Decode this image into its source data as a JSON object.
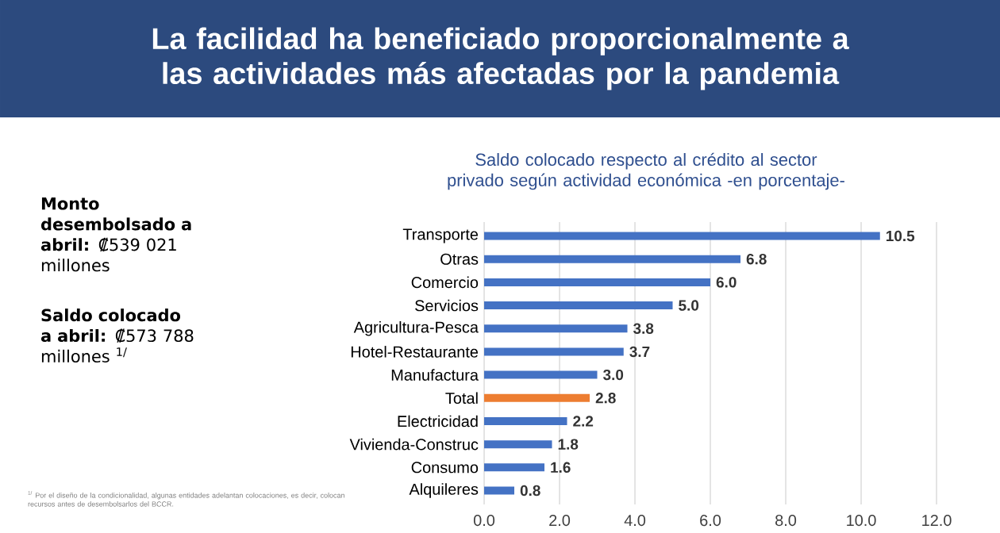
{
  "chart_data": {
    "type": "bar",
    "orientation": "horizontal",
    "title": "Saldo colocado respecto al crédito al sector privado según actividad económica -en porcentaje-",
    "subtitle": "La facilidad ha beneficiado proporcionalmente a las actividades más afectadas por la pandemia",
    "categories": [
      "Transporte",
      "Otras",
      "Comercio",
      "Servicios",
      "Agricultura-Pesca",
      "Hotel-Restaurante",
      "Manufactura",
      "Total",
      "Electricidad",
      "Vivienda-Construc",
      "Consumo",
      "Alquileres"
    ],
    "values": [
      10.5,
      6.8,
      6.0,
      5.0,
      3.8,
      3.7,
      3.0,
      2.8,
      2.2,
      1.8,
      1.6,
      0.8
    ],
    "value_labels": [
      "10.5",
      "6.8",
      "6.0",
      "5.0",
      "3.8",
      "3.7",
      "3.0",
      "2.8",
      "2.2",
      "1.8",
      "1.6",
      "0.8"
    ],
    "colors": [
      "#4472c4",
      "#4472c4",
      "#4472c4",
      "#4472c4",
      "#4472c4",
      "#4472c4",
      "#4472c4",
      "#ed7d31",
      "#4472c4",
      "#4472c4",
      "#4472c4",
      "#4472c4"
    ],
    "xlim": [
      0,
      12
    ],
    "xticks": [
      {
        "value": 0,
        "label": "0.0"
      },
      {
        "value": 2,
        "label": "2.0"
      },
      {
        "value": 4,
        "label": "4.0"
      },
      {
        "value": 6,
        "label": "6.0"
      },
      {
        "value": 8,
        "label": "8.0"
      },
      {
        "value": 10,
        "label": "10.0"
      },
      {
        "value": 12,
        "label": "12.0"
      }
    ],
    "grid": "x",
    "annotations": [
      "**Monto desembolsado a abril:** ₡539 021 millones",
      "**Saldo colocado a abril:** ₡573 788 millones $^{1/}$",
      "$^{1/}$ Por el diseño de la condicionalidad, algunas entidades adelantan colocaciones, es decir, colocan recursos antes de desembolsarlos del BCCR."
    ]
  }
}
